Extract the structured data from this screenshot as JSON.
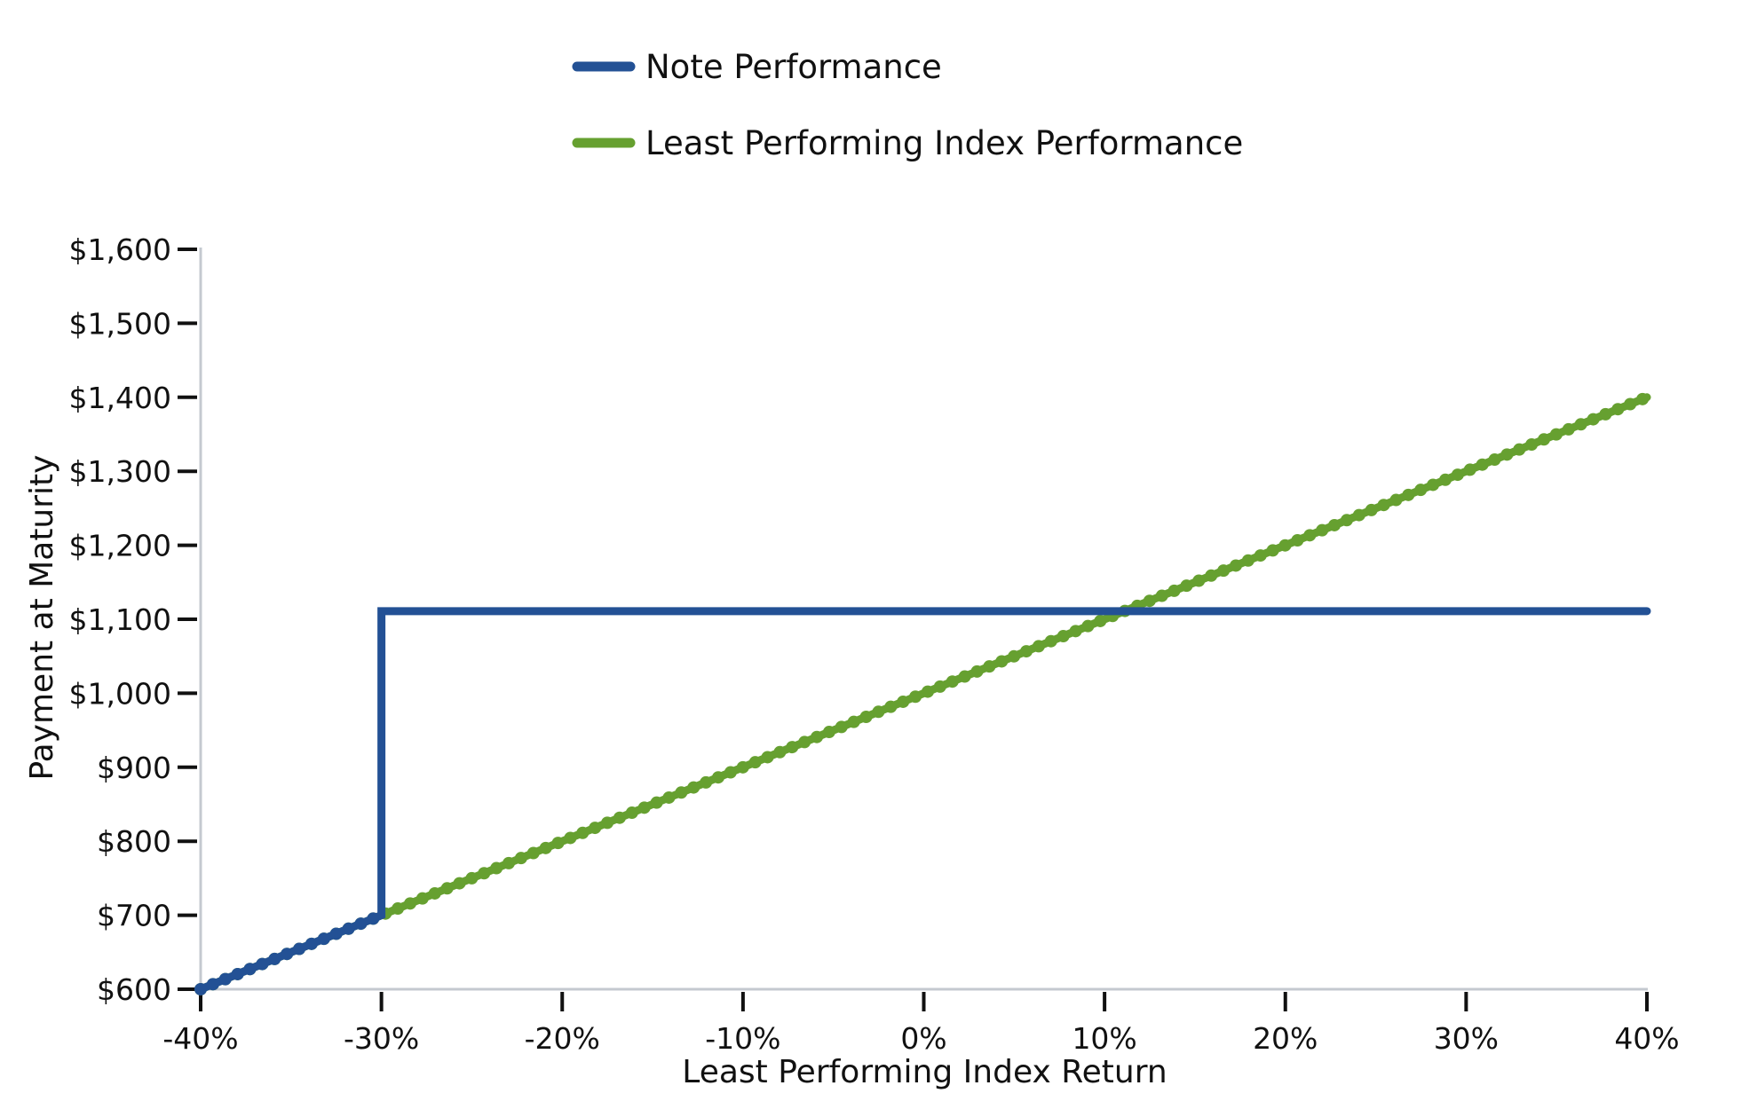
{
  "chart_data": {
    "type": "line",
    "title": "",
    "xlabel": "Least Performing Index Return",
    "ylabel": "Payment at Maturity",
    "xlim": [
      -40,
      40
    ],
    "ylim": [
      600,
      1600
    ],
    "x_ticks": [
      {
        "value": -40,
        "label": "-40%"
      },
      {
        "value": -30,
        "label": "-30%"
      },
      {
        "value": -20,
        "label": "-20%"
      },
      {
        "value": -10,
        "label": "-10%"
      },
      {
        "value": 0,
        "label": "0%"
      },
      {
        "value": 10,
        "label": "10%"
      },
      {
        "value": 20,
        "label": "20%"
      },
      {
        "value": 30,
        "label": "30%"
      },
      {
        "value": 40,
        "label": "40%"
      }
    ],
    "y_ticks": [
      {
        "value": 600,
        "label": "$600"
      },
      {
        "value": 700,
        "label": "$700"
      },
      {
        "value": 800,
        "label": "$800"
      },
      {
        "value": 900,
        "label": "$900"
      },
      {
        "value": 1000,
        "label": "$1,000"
      },
      {
        "value": 1100,
        "label": "$1,100"
      },
      {
        "value": 1200,
        "label": "$1,200"
      },
      {
        "value": 1300,
        "label": "$1,300"
      },
      {
        "value": 1400,
        "label": "$1,400"
      },
      {
        "value": 1500,
        "label": "$1,500"
      },
      {
        "value": 1600,
        "label": "$1,600"
      }
    ],
    "grid": false,
    "legend_position": "top-center",
    "series": [
      {
        "name": "Least Performing Index Performance",
        "color": "#66A030",
        "style": "dotted-line",
        "x": [
          -40,
          40
        ],
        "y": [
          600,
          1400
        ]
      },
      {
        "name": "Note Performance",
        "color": "#235195",
        "style": "solid-line",
        "x": [
          -40,
          -30,
          -30,
          40
        ],
        "y": [
          600,
          700,
          1111,
          1111
        ]
      }
    ],
    "annotations": []
  }
}
